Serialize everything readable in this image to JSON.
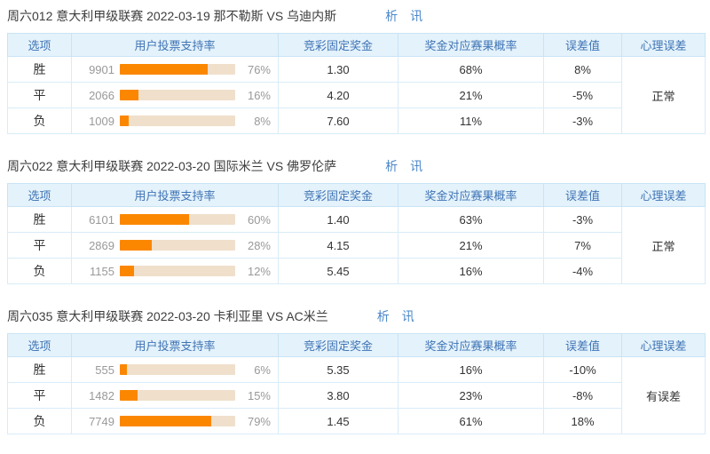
{
  "columns": [
    "选项",
    "用户投票支持率",
    "竞彩固定奖金",
    "奖金对应赛果概率",
    "误差值",
    "心理误差"
  ],
  "links": {
    "analysis": "析",
    "news": "讯"
  },
  "colors": {
    "header_bg": "#e4f2fb",
    "header_text": "#3f74b5",
    "outer_border": "#b9dcf0",
    "inner_border": "#c9e4f5",
    "row_border": "#d8ecf8",
    "bar_fill": "#fb8700",
    "bar_track": "#f0dfcb",
    "muted_text": "#999999",
    "value_text": "#333333",
    "link_blue": "#4a87c9",
    "highlight_blue": "#2d4fa6"
  },
  "sections": [
    {
      "title": "周六012 意大利甲级联赛 2022-03-19 那不勒斯 VS 乌迪内斯",
      "psych": "正常",
      "psych_highlight": false,
      "rows": [
        {
          "option": "胜",
          "votes": "9901",
          "pct": "76%",
          "odds": "1.30",
          "prob": "68%",
          "err": "8%",
          "err_highlight": false
        },
        {
          "option": "平",
          "votes": "2066",
          "pct": "16%",
          "odds": "4.20",
          "prob": "21%",
          "err": "-5%",
          "err_highlight": false
        },
        {
          "option": "负",
          "votes": "1009",
          "pct": "8%",
          "odds": "7.60",
          "prob": "11%",
          "err": "-3%",
          "err_highlight": false
        }
      ]
    },
    {
      "title": "周六022 意大利甲级联赛 2022-03-20 国际米兰 VS 佛罗伦萨",
      "psych": "正常",
      "psych_highlight": false,
      "rows": [
        {
          "option": "胜",
          "votes": "6101",
          "pct": "60%",
          "odds": "1.40",
          "prob": "63%",
          "err": "-3%",
          "err_highlight": false
        },
        {
          "option": "平",
          "votes": "2869",
          "pct": "28%",
          "odds": "4.15",
          "prob": "21%",
          "err": "7%",
          "err_highlight": false
        },
        {
          "option": "负",
          "votes": "1155",
          "pct": "12%",
          "odds": "5.45",
          "prob": "16%",
          "err": "-4%",
          "err_highlight": false
        }
      ]
    },
    {
      "title": "周六035 意大利甲级联赛 2022-03-20 卡利亚里 VS AC米兰",
      "psych": "有误差",
      "psych_highlight": true,
      "rows": [
        {
          "option": "胜",
          "votes": "555",
          "pct": "6%",
          "odds": "5.35",
          "prob": "16%",
          "err": "-10%",
          "err_highlight": false
        },
        {
          "option": "平",
          "votes": "1482",
          "pct": "15%",
          "odds": "3.80",
          "prob": "23%",
          "err": "-8%",
          "err_highlight": false
        },
        {
          "option": "负",
          "votes": "7749",
          "pct": "79%",
          "odds": "1.45",
          "prob": "61%",
          "err": "18%",
          "err_highlight": true
        }
      ]
    }
  ]
}
